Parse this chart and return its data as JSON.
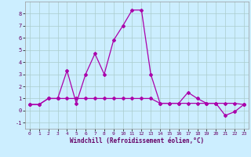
{
  "xlabel": "Windchill (Refroidissement éolien,°C)",
  "hours": [
    0,
    1,
    2,
    3,
    4,
    5,
    6,
    7,
    8,
    9,
    10,
    11,
    12,
    13,
    14,
    15,
    16,
    17,
    18,
    19,
    20,
    21,
    22,
    23
  ],
  "line1": [
    0.5,
    0.5,
    1.0,
    1.0,
    3.3,
    0.6,
    3.0,
    4.7,
    3.0,
    5.8,
    7.0,
    8.3,
    8.3,
    3.0,
    0.6,
    0.6,
    0.6,
    1.5,
    1.0,
    0.6,
    0.6,
    -0.4,
    -0.1,
    0.5
  ],
  "line2": [
    0.5,
    0.5,
    1.0,
    1.0,
    1.0,
    1.0,
    1.0,
    1.0,
    1.0,
    1.0,
    1.0,
    1.0,
    1.0,
    1.0,
    0.6,
    0.6,
    0.6,
    0.6,
    0.6,
    0.6,
    0.6,
    0.6,
    0.6,
    0.5
  ],
  "line_color": "#aa00aa",
  "bg_color": "#cceeff",
  "grid_color": "#aacccc",
  "ylim": [
    -1.5,
    9.0
  ],
  "xlim": [
    -0.5,
    23.5
  ],
  "yticks": [
    -1,
    0,
    1,
    2,
    3,
    4,
    5,
    6,
    7,
    8
  ],
  "xticks": [
    0,
    1,
    2,
    3,
    4,
    5,
    6,
    7,
    8,
    9,
    10,
    11,
    12,
    13,
    14,
    15,
    16,
    17,
    18,
    19,
    20,
    21,
    22,
    23
  ]
}
